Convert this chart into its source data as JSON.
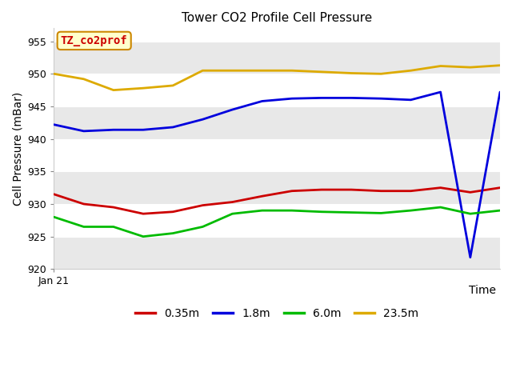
{
  "title": "Tower CO2 Profile Cell Pressure",
  "ylabel": "Cell Pressure (mBar)",
  "xlabel": "Time",
  "annotation_label": "TZ_co2prof",
  "ylim": [
    920,
    957
  ],
  "yticks": [
    920,
    925,
    930,
    935,
    940,
    945,
    950,
    955
  ],
  "fig_bg_color": "#ffffff",
  "plot_bg_color": "#ffffff",
  "band_color": "#e8e8e8",
  "series_colors": {
    "0.35m": "#cc0000",
    "1.8m": "#0000dd",
    "6.0m": "#00bb00",
    "23.5m": "#ddaa00"
  },
  "legend_order": [
    "0.35m",
    "1.8m",
    "6.0m",
    "23.5m"
  ],
  "linewidth": 2.0,
  "series_data": {
    "0.35m": [
      931.5,
      930.0,
      929.5,
      928.5,
      928.8,
      929.8,
      930.3,
      931.2,
      932.0,
      932.2,
      932.2,
      932.0,
      932.0,
      932.5,
      931.8,
      932.5
    ],
    "1.8m": [
      942.2,
      941.2,
      941.4,
      941.4,
      941.8,
      943.0,
      944.5,
      945.8,
      946.2,
      946.3,
      946.3,
      946.2,
      946.0,
      947.2,
      921.8,
      947.2
    ],
    "6.0m": [
      928.0,
      926.5,
      926.5,
      925.0,
      925.5,
      926.5,
      928.5,
      929.0,
      929.0,
      928.8,
      928.7,
      928.6,
      929.0,
      929.5,
      928.5,
      929.0
    ],
    "23.5m": [
      950.0,
      949.2,
      947.5,
      947.8,
      948.2,
      950.5,
      950.5,
      950.5,
      950.5,
      950.3,
      950.1,
      950.0,
      950.5,
      951.2,
      951.0,
      951.3
    ]
  }
}
